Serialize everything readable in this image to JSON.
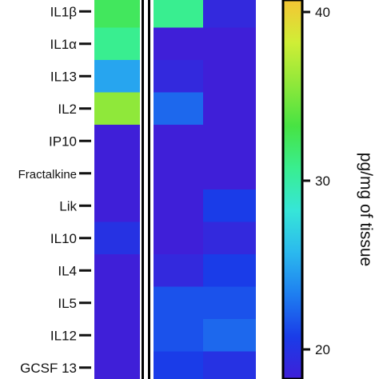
{
  "chart_data": {
    "type": "heatmap",
    "title": "",
    "xlabel": "",
    "ylabel": "",
    "rows": [
      "IL1β",
      "IL1α",
      "IL13",
      "IL2",
      "IP10",
      "Fractalkine",
      "Lik",
      "IL10",
      "IL4",
      "IL5",
      "IL12",
      "GCSF 13"
    ],
    "columns": [
      "",
      "",
      ""
    ],
    "values": [
      [
        32,
        30,
        16
      ],
      [
        30,
        13,
        13
      ],
      [
        23,
        16,
        14
      ],
      [
        36,
        20,
        12
      ],
      [
        11,
        15,
        15
      ],
      [
        12,
        15,
        15
      ],
      [
        11,
        12,
        18
      ],
      [
        17,
        14,
        16
      ],
      [
        11,
        16,
        18
      ],
      [
        15,
        19,
        19
      ],
      [
        15,
        19,
        20
      ],
      [
        14,
        18,
        17
      ]
    ],
    "colorbar": {
      "label": "pg/mg of tissue",
      "ticks": [
        20,
        30,
        40
      ],
      "range": [
        15,
        42
      ],
      "colormap": [
        "#3f1fd8",
        "#1a3ce8",
        "#1e7ef0",
        "#2bb9ee",
        "#36e6d8",
        "#39ee90",
        "#47e343",
        "#8fe83a",
        "#d0ee36",
        "#f5c534"
      ]
    },
    "separator_color": "#ffffff",
    "grid": false,
    "legend": "colorbar right"
  }
}
